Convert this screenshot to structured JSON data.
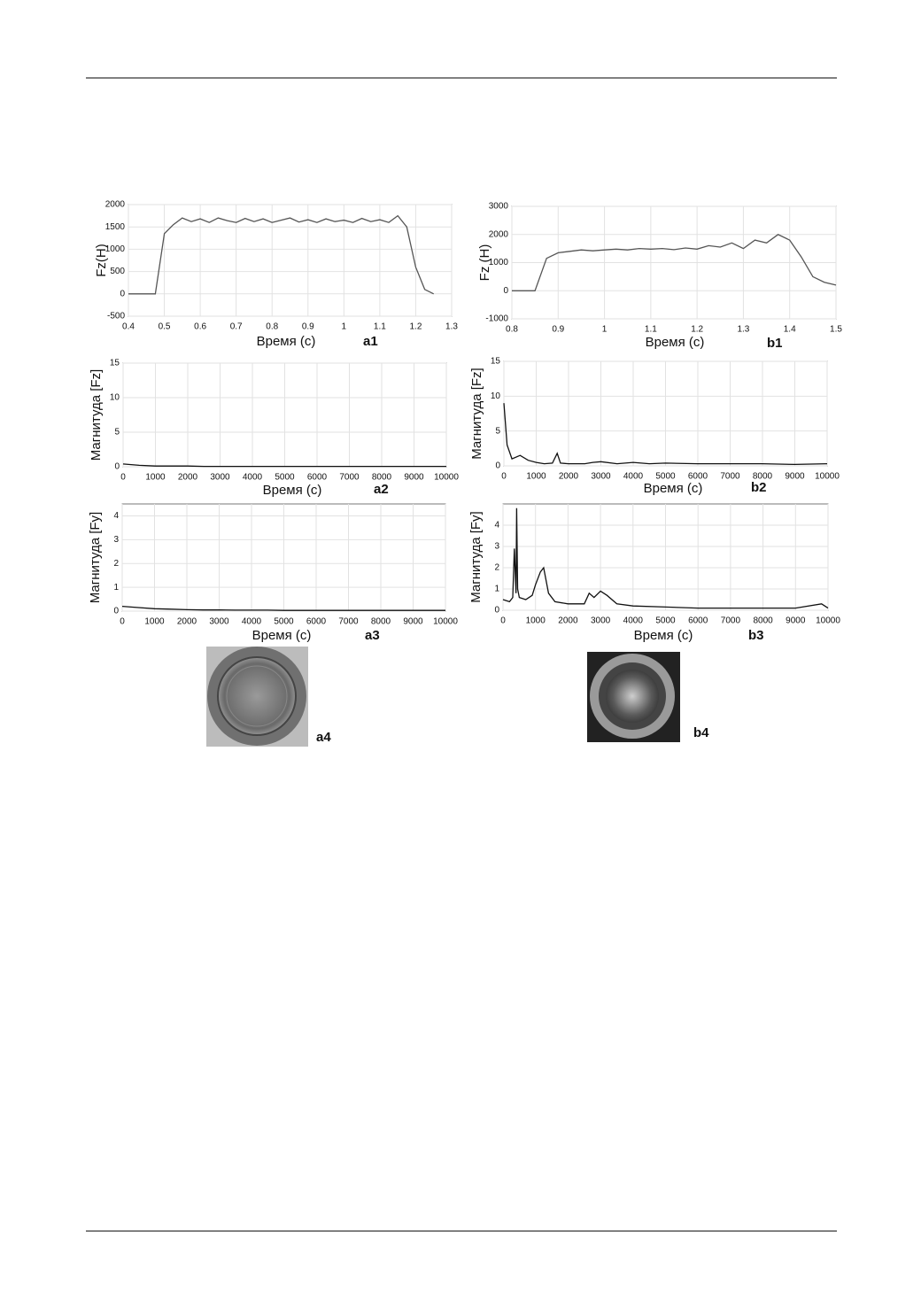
{
  "chart_data": [
    {
      "type": "line",
      "label": "a1",
      "xlabel": "Время (с)",
      "ylabel": "Fz(H)",
      "color": "#555555",
      "grid": true,
      "x": [
        0.4,
        0.425,
        0.45,
        0.475,
        0.5,
        0.525,
        0.55,
        0.575,
        0.6,
        0.625,
        0.65,
        0.675,
        0.7,
        0.725,
        0.75,
        0.775,
        0.8,
        0.825,
        0.85,
        0.875,
        0.9,
        0.925,
        0.95,
        0.975,
        1,
        1.025,
        1.05,
        1.075,
        1.1,
        1.125,
        1.15,
        1.175,
        1.2,
        1.225,
        1.25
      ],
      "values": [
        0,
        0,
        0,
        0,
        1350,
        1550,
        1700,
        1620,
        1680,
        1600,
        1700,
        1640,
        1600,
        1690,
        1620,
        1680,
        1600,
        1650,
        1700,
        1610,
        1660,
        1600,
        1680,
        1620,
        1650,
        1600,
        1690,
        1620,
        1660,
        1600,
        1750,
        1500,
        600,
        100,
        0
      ],
      "xlim": [
        0.4,
        1.3
      ],
      "xticks": [
        0.4,
        0.5,
        0.6,
        0.7,
        0.8,
        0.9,
        1,
        1.1,
        1.2,
        1.3
      ],
      "ylim": [
        -500,
        2000
      ],
      "yticks": [
        -500,
        0,
        500,
        1000,
        1500,
        2000
      ]
    },
    {
      "type": "line",
      "label": "b1",
      "xlabel": "Время (с)",
      "ylabel": "Fz (H)",
      "color": "#555555",
      "grid": true,
      "x": [
        0.8,
        0.825,
        0.85,
        0.875,
        0.9,
        0.925,
        0.95,
        0.975,
        1,
        1.025,
        1.05,
        1.075,
        1.1,
        1.125,
        1.15,
        1.175,
        1.2,
        1.225,
        1.25,
        1.275,
        1.3,
        1.325,
        1.35,
        1.375,
        1.4,
        1.425,
        1.45,
        1.475,
        1.5
      ],
      "values": [
        0,
        0,
        0,
        1150,
        1350,
        1400,
        1450,
        1420,
        1450,
        1480,
        1450,
        1500,
        1480,
        1500,
        1460,
        1520,
        1480,
        1600,
        1550,
        1700,
        1500,
        1800,
        1700,
        2000,
        1800,
        1200,
        500,
        300,
        200
      ],
      "xlim": [
        0.8,
        1.5
      ],
      "xticks": [
        0.8,
        0.9,
        1,
        1.1,
        1.2,
        1.3,
        1.4,
        1.5
      ],
      "ylim": [
        -1000,
        3000
      ],
      "yticks": [
        -1000,
        0,
        1000,
        2000,
        3000
      ]
    },
    {
      "type": "line",
      "label": "a2",
      "xlabel": "Время (с)",
      "ylabel": "Магнитуда [Fz]",
      "color": "#111111",
      "grid": true,
      "x": [
        0,
        500,
        1000,
        1500,
        2000,
        2500,
        3000,
        3500,
        4000,
        4500,
        5000,
        5500,
        6000,
        6500,
        7000,
        7500,
        8000,
        8500,
        9000,
        9500,
        10000
      ],
      "values": [
        0.4,
        0.2,
        0.1,
        0.1,
        0.1,
        0.05,
        0.05,
        0.05,
        0.05,
        0.05,
        0.05,
        0.05,
        0.05,
        0.05,
        0.05,
        0.05,
        0.05,
        0.05,
        0.05,
        0.05,
        0.05
      ],
      "xlim": [
        0,
        10000
      ],
      "xticks": [
        0,
        1000,
        2000,
        3000,
        4000,
        5000,
        6000,
        7000,
        8000,
        9000,
        10000
      ],
      "ylim": [
        0,
        15
      ],
      "yticks": [
        0,
        5,
        10,
        15
      ]
    },
    {
      "type": "line",
      "label": "b2",
      "xlabel": "Время (с)",
      "ylabel": "Магнитуда [Fz]",
      "color": "#111111",
      "grid": true,
      "x": [
        0,
        100,
        250,
        500,
        750,
        1000,
        1250,
        1500,
        1650,
        1750,
        2000,
        2500,
        2750,
        3000,
        3500,
        4000,
        4500,
        5000,
        6000,
        7000,
        8000,
        9000,
        10000
      ],
      "values": [
        9,
        3,
        1,
        1.5,
        0.8,
        0.5,
        0.3,
        0.4,
        1.8,
        0.4,
        0.3,
        0.3,
        0.5,
        0.6,
        0.3,
        0.5,
        0.3,
        0.4,
        0.3,
        0.3,
        0.3,
        0.2,
        0.3
      ],
      "xlim": [
        0,
        10000
      ],
      "xticks": [
        0,
        1000,
        2000,
        3000,
        4000,
        5000,
        6000,
        7000,
        8000,
        9000,
        10000
      ],
      "ylim": [
        0,
        15
      ],
      "yticks": [
        0,
        5,
        10,
        15
      ]
    },
    {
      "type": "line",
      "label": "a3",
      "xlabel": "Время (с)",
      "ylabel": "Магнитуда [Fy]",
      "color": "#111111",
      "grid": true,
      "x": [
        0,
        500,
        1000,
        1500,
        2000,
        2500,
        3000,
        3500,
        4000,
        4500,
        5000,
        5500,
        6000,
        6500,
        7000,
        7500,
        8000,
        8500,
        9000,
        9500,
        10000
      ],
      "values": [
        0.2,
        0.15,
        0.1,
        0.08,
        0.06,
        0.05,
        0.05,
        0.04,
        0.04,
        0.04,
        0.03,
        0.03,
        0.03,
        0.03,
        0.03,
        0.03,
        0.03,
        0.03,
        0.03,
        0.03,
        0.03
      ],
      "xlim": [
        0,
        10000
      ],
      "xticks": [
        0,
        1000,
        2000,
        3000,
        4000,
        5000,
        6000,
        7000,
        8000,
        9000,
        10000
      ],
      "ylim": [
        0,
        4.5
      ],
      "yticks": [
        0,
        1,
        2,
        3,
        4
      ]
    },
    {
      "type": "line",
      "label": "b3",
      "xlabel": "Время (с)",
      "ylabel": "Магнитуда [Fy]",
      "color": "#111111",
      "grid": true,
      "x": [
        0,
        200,
        300,
        350,
        400,
        420,
        450,
        500,
        700,
        900,
        1000,
        1150,
        1250,
        1400,
        1600,
        2000,
        2500,
        2650,
        2800,
        3000,
        3200,
        3500,
        4000,
        5000,
        6000,
        7000,
        8000,
        9000,
        9800,
        10000
      ],
      "values": [
        0.5,
        0.4,
        0.6,
        2.9,
        0.8,
        4.8,
        1.0,
        0.6,
        0.5,
        0.7,
        1.2,
        1.8,
        2.0,
        0.8,
        0.4,
        0.3,
        0.3,
        0.8,
        0.6,
        0.9,
        0.7,
        0.3,
        0.2,
        0.15,
        0.1,
        0.1,
        0.1,
        0.1,
        0.3,
        0.1
      ],
      "xlim": [
        0,
        10000
      ],
      "xticks": [
        0,
        1000,
        2000,
        3000,
        4000,
        5000,
        6000,
        7000,
        8000,
        9000,
        10000
      ],
      "ylim": [
        0,
        5
      ],
      "yticks": [
        0,
        1,
        2,
        3,
        4
      ]
    }
  ],
  "figure": {
    "images": [
      {
        "label": "a4"
      },
      {
        "label": "b4"
      }
    ]
  }
}
